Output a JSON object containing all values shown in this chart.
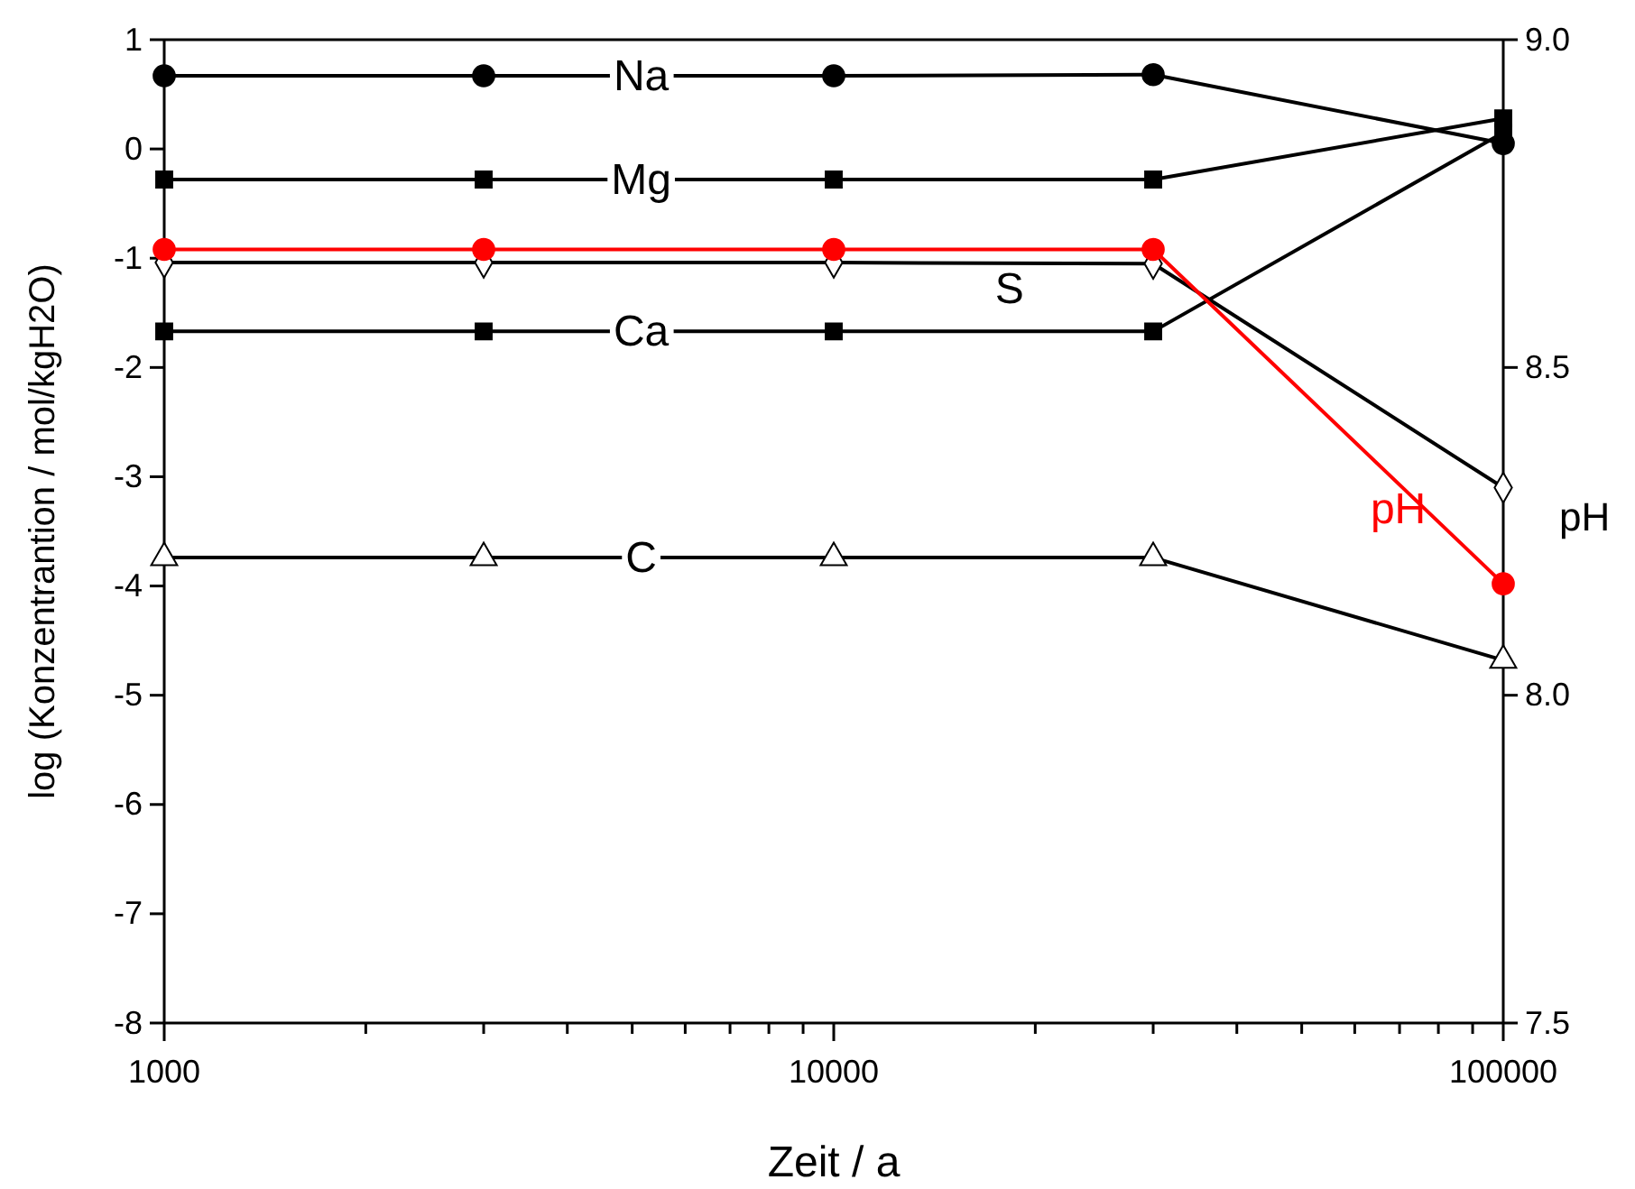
{
  "chart_data": {
    "type": "line",
    "xlabel": "Zeit / a",
    "ylabel": "log (Konzentrantion / mol/kgH2O)",
    "y2label": "pH",
    "log": "x",
    "grid": false,
    "line_style": "solid",
    "x": [
      1000,
      3000,
      10000,
      30000,
      100000
    ],
    "xlim": [
      1000,
      100000
    ],
    "xticks": [
      1000,
      {
        "value": 2000,
        "label": null
      },
      {
        "value": 3000,
        "label": null
      },
      {
        "value": 4000,
        "label": null
      },
      {
        "value": 5000,
        "label": null
      },
      {
        "value": 6000,
        "label": null
      },
      {
        "value": 7000,
        "label": null
      },
      {
        "value": 8000,
        "label": null
      },
      {
        "value": 9000,
        "label": null
      },
      10000,
      {
        "value": 20000,
        "label": null
      },
      {
        "value": 30000,
        "label": null
      },
      {
        "value": 40000,
        "label": null
      },
      {
        "value": 50000,
        "label": null
      },
      {
        "value": 60000,
        "label": null
      },
      {
        "value": 70000,
        "label": null
      },
      {
        "value": 80000,
        "label": null
      },
      {
        "value": 90000,
        "label": null
      },
      100000
    ],
    "ylim": [
      -8,
      1
    ],
    "yticks": [
      -8,
      -7,
      -6,
      -5,
      -4,
      -3,
      -2,
      -1,
      0,
      1
    ],
    "y2lim": [
      7.5,
      9
    ],
    "y2ticks": [
      {
        "value": 7.5,
        "label": "7.5"
      },
      {
        "value": 8,
        "label": "8.0"
      },
      {
        "value": 8.5,
        "label": "8.5"
      },
      {
        "value": 9,
        "label": "9.0"
      }
    ],
    "series": [
      {
        "name": "Na",
        "color": "#000000",
        "marker": "circle",
        "values": [
          0.67,
          0.67,
          0.67,
          0.68,
          0.05
        ]
      },
      {
        "name": "Mg",
        "color": "#000000",
        "marker": "square",
        "values": [
          -0.28,
          -0.28,
          -0.28,
          -0.28,
          0.28
        ]
      },
      {
        "name": "S",
        "color": "#000000",
        "marker": "diamond",
        "values": [
          -1.04,
          -1.04,
          -1.04,
          -1.05,
          -3.1
        ]
      },
      {
        "name": "Ca",
        "color": "#000000",
        "marker": "square",
        "values": [
          -1.67,
          -1.67,
          -1.67,
          -1.67,
          0.15
        ]
      },
      {
        "name": "C",
        "color": "#000000",
        "marker": "triangle",
        "values": [
          -3.74,
          -3.74,
          -3.74,
          -3.74,
          -4.68
        ]
      },
      {
        "name": "pH",
        "color": "#ff0000",
        "marker": "circle",
        "axis": "y2",
        "values": [
          8.68,
          8.68,
          8.68,
          8.68,
          8.17
        ]
      }
    ]
  }
}
